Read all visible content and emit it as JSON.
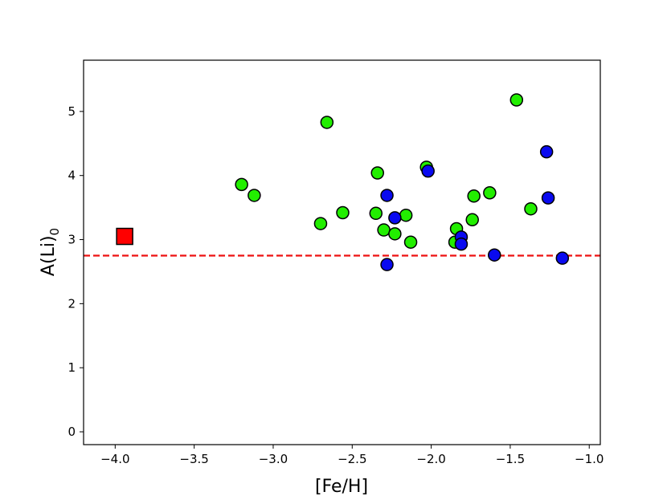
{
  "chart_data": {
    "type": "scatter",
    "title": "",
    "xlabel": "[Fe/H]",
    "ylabel_main": "A(Li)",
    "ylabel_sub": "0",
    "xlim": [
      -4.2,
      -0.93
    ],
    "ylim": [
      -0.2,
      5.8
    ],
    "xticks": [
      -4.0,
      -3.5,
      -3.0,
      -2.5,
      -2.0,
      -1.5,
      -1.0
    ],
    "xtick_labels": [
      "−4.0",
      "−3.5",
      "−3.0",
      "−2.5",
      "−2.0",
      "−1.5",
      "−1.0"
    ],
    "yticks": [
      0,
      1,
      2,
      3,
      4,
      5
    ],
    "ytick_labels": [
      "0",
      "1",
      "2",
      "3",
      "4",
      "5"
    ],
    "grid": false,
    "reference_line": {
      "y": 2.75,
      "style": "dashed",
      "color": "#ee1111"
    },
    "series": [
      {
        "marker": "square",
        "color": "#ff0000",
        "edge_color": "#000000",
        "points": [
          {
            "x": -3.94,
            "y": 3.05
          }
        ]
      },
      {
        "marker": "circle",
        "color": "#22ee00",
        "edge_color": "#000000",
        "points": [
          {
            "x": -3.2,
            "y": 3.86
          },
          {
            "x": -3.12,
            "y": 3.69
          },
          {
            "x": -2.7,
            "y": 3.25
          },
          {
            "x": -2.66,
            "y": 4.83
          },
          {
            "x": -2.56,
            "y": 3.42
          },
          {
            "x": -2.35,
            "y": 3.41
          },
          {
            "x": -2.34,
            "y": 4.04
          },
          {
            "x": -2.3,
            "y": 3.15
          },
          {
            "x": -2.23,
            "y": 3.09
          },
          {
            "x": -2.16,
            "y": 3.38
          },
          {
            "x": -2.13,
            "y": 2.96
          },
          {
            "x": -2.03,
            "y": 4.13
          },
          {
            "x": -1.85,
            "y": 2.96
          },
          {
            "x": -1.84,
            "y": 3.17
          },
          {
            "x": -1.74,
            "y": 3.31
          },
          {
            "x": -1.73,
            "y": 3.68
          },
          {
            "x": -1.63,
            "y": 3.73
          },
          {
            "x": -1.46,
            "y": 5.18
          },
          {
            "x": -1.37,
            "y": 3.48
          }
        ]
      },
      {
        "marker": "circle",
        "color": "#0a0af0",
        "edge_color": "#000000",
        "points": [
          {
            "x": -2.28,
            "y": 3.69
          },
          {
            "x": -2.28,
            "y": 2.61
          },
          {
            "x": -2.23,
            "y": 3.34
          },
          {
            "x": -2.02,
            "y": 4.07
          },
          {
            "x": -1.81,
            "y": 3.04
          },
          {
            "x": -1.81,
            "y": 2.93
          },
          {
            "x": -1.6,
            "y": 2.76
          },
          {
            "x": -1.27,
            "y": 4.37
          },
          {
            "x": -1.26,
            "y": 3.65
          },
          {
            "x": -1.17,
            "y": 2.71
          }
        ]
      }
    ]
  }
}
